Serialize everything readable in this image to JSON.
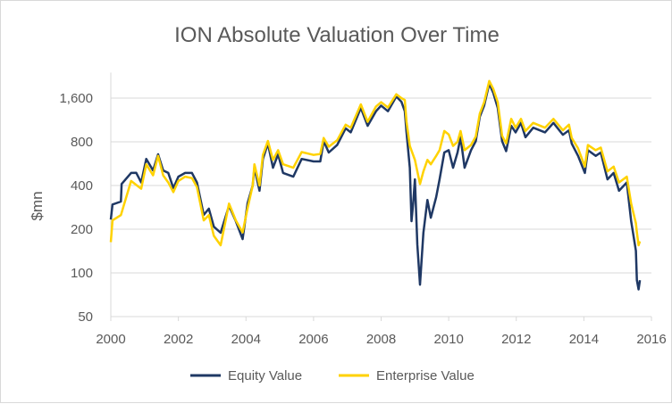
{
  "chart_data": {
    "type": "line",
    "title": "ION Absolute Valuation Over Time",
    "xlabel": "",
    "ylabel": "$mn",
    "yscale": "log2",
    "ylim": [
      50,
      2400
    ],
    "xlim": [
      2000,
      2016
    ],
    "yticks": [
      50,
      100,
      200,
      400,
      800,
      1600
    ],
    "ytick_labels": [
      "50",
      "100",
      "200",
      "400",
      "800",
      "1,600"
    ],
    "xticks": [
      2000,
      2002,
      2004,
      2006,
      2008,
      2010,
      2012,
      2014,
      2016
    ],
    "xtick_labels": [
      "2000",
      "2002",
      "2004",
      "2006",
      "2008",
      "2010",
      "2012",
      "2014",
      "2016"
    ],
    "grid": true,
    "legend_position": "bottom",
    "series": [
      {
        "name": "Equity Value",
        "color": "#1F3864",
        "points": [
          [
            2000.0,
            233
          ],
          [
            2000.05,
            296
          ],
          [
            2000.3,
            310
          ],
          [
            2000.32,
            410
          ],
          [
            2000.6,
            488
          ],
          [
            2000.75,
            490
          ],
          [
            2000.9,
            420
          ],
          [
            2001.05,
            610
          ],
          [
            2001.25,
            508
          ],
          [
            2001.4,
            656
          ],
          [
            2001.55,
            508
          ],
          [
            2001.7,
            488
          ],
          [
            2001.85,
            384
          ],
          [
            2002.0,
            460
          ],
          [
            2002.2,
            488
          ],
          [
            2002.4,
            488
          ],
          [
            2002.55,
            420
          ],
          [
            2002.75,
            251
          ],
          [
            2002.9,
            277
          ],
          [
            2003.05,
            208
          ],
          [
            2003.25,
            189
          ],
          [
            2003.5,
            290
          ],
          [
            2003.7,
            227
          ],
          [
            2003.9,
            171
          ],
          [
            2004.05,
            303
          ],
          [
            2004.2,
            400
          ],
          [
            2004.25,
            530
          ],
          [
            2004.4,
            368
          ],
          [
            2004.5,
            610
          ],
          [
            2004.65,
            778
          ],
          [
            2004.8,
            530
          ],
          [
            2004.95,
            656
          ],
          [
            2005.1,
            488
          ],
          [
            2005.4,
            460
          ],
          [
            2005.65,
            610
          ],
          [
            2006.0,
            586
          ],
          [
            2006.2,
            586
          ],
          [
            2006.3,
            808
          ],
          [
            2006.45,
            675
          ],
          [
            2006.7,
            760
          ],
          [
            2006.95,
            990
          ],
          [
            2007.1,
            930
          ],
          [
            2007.4,
            1370
          ],
          [
            2007.6,
            1030
          ],
          [
            2007.85,
            1300
          ],
          [
            2008.0,
            1420
          ],
          [
            2008.2,
            1300
          ],
          [
            2008.45,
            1640
          ],
          [
            2008.6,
            1510
          ],
          [
            2008.7,
            1300
          ],
          [
            2008.75,
            930
          ],
          [
            2008.85,
            530
          ],
          [
            2008.9,
            227
          ],
          [
            2008.95,
            303
          ],
          [
            2009.0,
            441
          ],
          [
            2009.07,
            157
          ],
          [
            2009.15,
            83
          ],
          [
            2009.25,
            189
          ],
          [
            2009.37,
            318
          ],
          [
            2009.47,
            240
          ],
          [
            2009.63,
            333
          ],
          [
            2009.73,
            441
          ],
          [
            2009.87,
            675
          ],
          [
            2010.0,
            700
          ],
          [
            2010.13,
            530
          ],
          [
            2010.26,
            675
          ],
          [
            2010.35,
            860
          ],
          [
            2010.47,
            530
          ],
          [
            2010.66,
            700
          ],
          [
            2010.8,
            808
          ],
          [
            2010.92,
            1190
          ],
          [
            2011.05,
            1420
          ],
          [
            2011.2,
            2010
          ],
          [
            2011.32,
            1740
          ],
          [
            2011.45,
            1370
          ],
          [
            2011.58,
            808
          ],
          [
            2011.7,
            690
          ],
          [
            2011.85,
            1030
          ],
          [
            2011.98,
            930
          ],
          [
            2012.14,
            1080
          ],
          [
            2012.27,
            860
          ],
          [
            2012.5,
            1000
          ],
          [
            2012.85,
            930
          ],
          [
            2013.1,
            1080
          ],
          [
            2013.38,
            895
          ],
          [
            2013.56,
            960
          ],
          [
            2013.64,
            778
          ],
          [
            2013.83,
            640
          ],
          [
            2014.03,
            488
          ],
          [
            2014.12,
            700
          ],
          [
            2014.35,
            640
          ],
          [
            2014.5,
            675
          ],
          [
            2014.7,
            441
          ],
          [
            2014.88,
            488
          ],
          [
            2015.04,
            368
          ],
          [
            2015.27,
            420
          ],
          [
            2015.4,
            227
          ],
          [
            2015.54,
            142
          ],
          [
            2015.57,
            89
          ],
          [
            2015.62,
            77
          ],
          [
            2015.66,
            89
          ]
        ]
      },
      {
        "name": "Enterprise Value",
        "color": "#FFD200",
        "points": [
          [
            2000.0,
            163
          ],
          [
            2000.05,
            230
          ],
          [
            2000.3,
            250
          ],
          [
            2000.6,
            430
          ],
          [
            2000.9,
            380
          ],
          [
            2001.05,
            560
          ],
          [
            2001.25,
            470
          ],
          [
            2001.4,
            640
          ],
          [
            2001.55,
            470
          ],
          [
            2001.7,
            420
          ],
          [
            2001.85,
            360
          ],
          [
            2002.0,
            430
          ],
          [
            2002.2,
            460
          ],
          [
            2002.4,
            450
          ],
          [
            2002.55,
            390
          ],
          [
            2002.75,
            230
          ],
          [
            2002.9,
            250
          ],
          [
            2003.05,
            180
          ],
          [
            2003.25,
            155
          ],
          [
            2003.5,
            300
          ],
          [
            2003.7,
            230
          ],
          [
            2003.9,
            190
          ],
          [
            2004.05,
            280
          ],
          [
            2004.2,
            400
          ],
          [
            2004.25,
            560
          ],
          [
            2004.4,
            400
          ],
          [
            2004.5,
            650
          ],
          [
            2004.65,
            810
          ],
          [
            2004.8,
            600
          ],
          [
            2004.95,
            700
          ],
          [
            2005.1,
            560
          ],
          [
            2005.4,
            530
          ],
          [
            2005.65,
            680
          ],
          [
            2006.0,
            650
          ],
          [
            2006.2,
            660
          ],
          [
            2006.3,
            850
          ],
          [
            2006.45,
            740
          ],
          [
            2006.7,
            820
          ],
          [
            2006.95,
            1050
          ],
          [
            2007.1,
            1000
          ],
          [
            2007.4,
            1450
          ],
          [
            2007.6,
            1100
          ],
          [
            2007.85,
            1400
          ],
          [
            2008.0,
            1500
          ],
          [
            2008.2,
            1380
          ],
          [
            2008.45,
            1700
          ],
          [
            2008.6,
            1600
          ],
          [
            2008.7,
            1550
          ],
          [
            2008.75,
            1100
          ],
          [
            2008.85,
            750
          ],
          [
            2009.0,
            600
          ],
          [
            2009.15,
            410
          ],
          [
            2009.25,
            500
          ],
          [
            2009.37,
            600
          ],
          [
            2009.47,
            560
          ],
          [
            2009.63,
            640
          ],
          [
            2009.73,
            700
          ],
          [
            2009.87,
            950
          ],
          [
            2010.0,
            900
          ],
          [
            2010.13,
            750
          ],
          [
            2010.26,
            800
          ],
          [
            2010.35,
            950
          ],
          [
            2010.47,
            700
          ],
          [
            2010.66,
            760
          ],
          [
            2010.8,
            870
          ],
          [
            2010.92,
            1250
          ],
          [
            2011.05,
            1500
          ],
          [
            2011.2,
            2100
          ],
          [
            2011.32,
            1850
          ],
          [
            2011.45,
            1500
          ],
          [
            2011.58,
            880
          ],
          [
            2011.7,
            780
          ],
          [
            2011.85,
            1150
          ],
          [
            2011.98,
            1000
          ],
          [
            2012.14,
            1150
          ],
          [
            2012.27,
            950
          ],
          [
            2012.5,
            1080
          ],
          [
            2012.85,
            1000
          ],
          [
            2013.1,
            1150
          ],
          [
            2013.38,
            960
          ],
          [
            2013.56,
            1050
          ],
          [
            2013.64,
            850
          ],
          [
            2013.83,
            720
          ],
          [
            2014.03,
            540
          ],
          [
            2014.12,
            760
          ],
          [
            2014.35,
            700
          ],
          [
            2014.5,
            730
          ],
          [
            2014.7,
            500
          ],
          [
            2014.88,
            540
          ],
          [
            2015.04,
            420
          ],
          [
            2015.27,
            460
          ],
          [
            2015.4,
            300
          ],
          [
            2015.54,
            220
          ],
          [
            2015.57,
            190
          ],
          [
            2015.62,
            155
          ],
          [
            2015.66,
            165
          ]
        ]
      }
    ]
  }
}
